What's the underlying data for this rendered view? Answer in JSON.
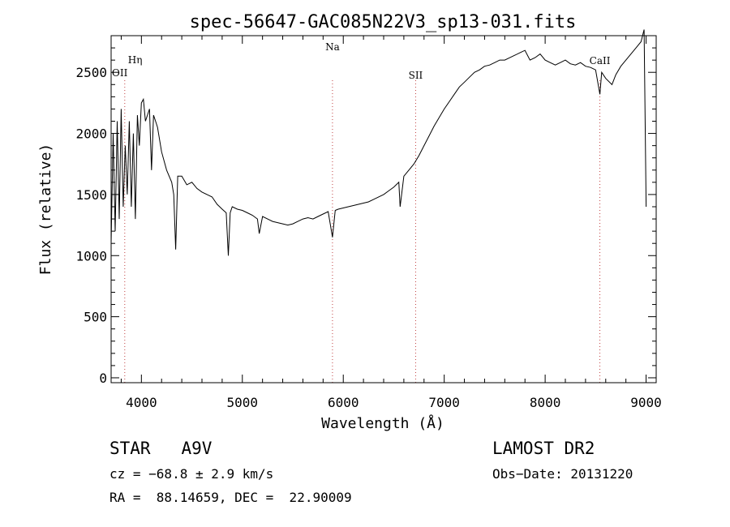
{
  "chart_data": {
    "type": "line",
    "title": "spec-56647-GAC085N22V3_sp13-031.fits",
    "xlabel": "Wavelength (Å)",
    "ylabel": "Flux (relative)",
    "xlim": [
      3700,
      9100
    ],
    "ylim": [
      -40,
      2800
    ],
    "x_ticks": [
      4000,
      5000,
      6000,
      7000,
      8000,
      9000
    ],
    "y_ticks": [
      0,
      500,
      1000,
      1500,
      2000,
      2500
    ],
    "grid": false,
    "series": [
      {
        "x": [
          3700,
          3720,
          3740,
          3760,
          3780,
          3800,
          3820,
          3840,
          3860,
          3880,
          3900,
          3920,
          3940,
          3960,
          3980,
          4000,
          4020,
          4040,
          4060,
          4080,
          4100,
          4120,
          4140,
          4160,
          4180,
          4200,
          4250,
          4300,
          4320,
          4340,
          4360,
          4400,
          4450,
          4500,
          4550,
          4600,
          4650,
          4700,
          4750,
          4800,
          4840,
          4861,
          4880,
          4900,
          4950,
          5000,
          5050,
          5100,
          5150,
          5167,
          5200,
          5250,
          5300,
          5350,
          5400,
          5450,
          5500,
          5550,
          5600,
          5650,
          5700,
          5750,
          5800,
          5850,
          5893,
          5920,
          5950,
          6000,
          6050,
          6100,
          6150,
          6200,
          6250,
          6300,
          6350,
          6400,
          6450,
          6500,
          6550,
          6563,
          6600,
          6650,
          6700,
          6750,
          6800,
          6850,
          6900,
          6950,
          7000,
          7050,
          7100,
          7150,
          7200,
          7250,
          7300,
          7350,
          7400,
          7450,
          7500,
          7550,
          7600,
          7650,
          7700,
          7750,
          7800,
          7850,
          7900,
          7950,
          8000,
          8050,
          8100,
          8150,
          8200,
          8250,
          8300,
          8350,
          8400,
          8450,
          8500,
          8542,
          8560,
          8600,
          8662,
          8700,
          8750,
          8800,
          8850,
          8900,
          8950,
          8980,
          9000
        ],
        "y": [
          1100,
          2000,
          1200,
          2100,
          1300,
          2200,
          1400,
          1900,
          1500,
          2100,
          1400,
          2000,
          1300,
          2150,
          1900,
          2250,
          2280,
          2100,
          2150,
          2200,
          1700,
          2150,
          2100,
          2050,
          1950,
          1850,
          1700,
          1600,
          1500,
          1050,
          1650,
          1650,
          1580,
          1600,
          1550,
          1520,
          1500,
          1480,
          1420,
          1380,
          1350,
          1000,
          1350,
          1400,
          1380,
          1370,
          1350,
          1330,
          1300,
          1180,
          1320,
          1300,
          1280,
          1270,
          1260,
          1250,
          1260,
          1280,
          1300,
          1310,
          1300,
          1320,
          1340,
          1360,
          1150,
          1370,
          1380,
          1390,
          1400,
          1410,
          1420,
          1430,
          1440,
          1460,
          1480,
          1500,
          1530,
          1560,
          1600,
          1400,
          1650,
          1700,
          1750,
          1820,
          1900,
          1980,
          2060,
          2130,
          2200,
          2260,
          2320,
          2380,
          2420,
          2460,
          2500,
          2520,
          2550,
          2560,
          2580,
          2600,
          2600,
          2620,
          2640,
          2660,
          2680,
          2600,
          2620,
          2650,
          2600,
          2580,
          2560,
          2580,
          2600,
          2570,
          2560,
          2580,
          2550,
          2540,
          2520,
          2320,
          2500,
          2450,
          2400,
          2480,
          2550,
          2600,
          2650,
          2700,
          2750,
          2850,
          1400
        ]
      }
    ],
    "line_markers": [
      {
        "label": "Hη",
        "x": 3835
      },
      {
        "label": "OII",
        "x": 3727
      },
      {
        "label": "Na",
        "x": 5893
      },
      {
        "label": "SII",
        "x": 6717
      },
      {
        "label": "CaII",
        "x": 8542
      }
    ]
  },
  "info": {
    "object": "STAR   A9V",
    "cz": "cz = −68.8 ± 2.9 km/s",
    "coords": "RA =  88.14659, DEC =  22.90009",
    "survey": "LAMOST DR2",
    "obsdate": "Obs−Date: 20131220"
  }
}
